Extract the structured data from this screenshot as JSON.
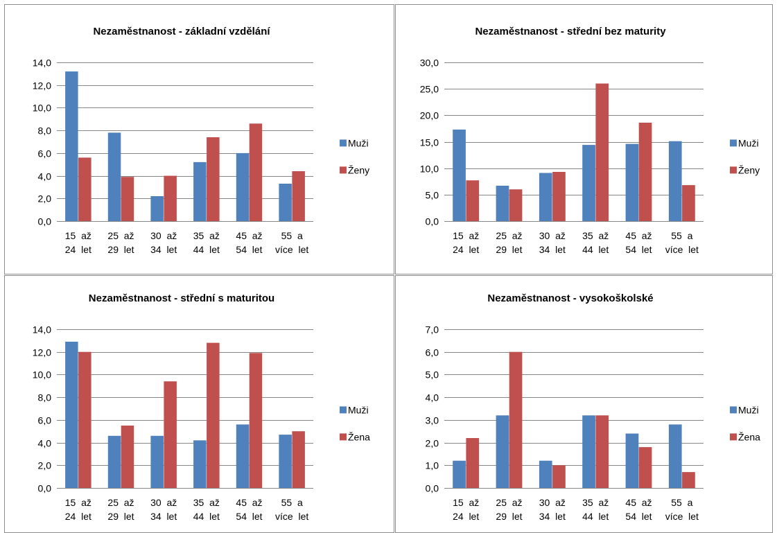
{
  "chart_data": [
    {
      "type": "bar",
      "title": "Nezaměstnanost - základní vzdělání",
      "categories": [
        [
          "15  až",
          "24  let"
        ],
        [
          "25  až",
          "29  let"
        ],
        [
          "30  až",
          "34  let"
        ],
        [
          "35  až",
          "44  let"
        ],
        [
          "45  až",
          "54  let"
        ],
        [
          "55  a",
          "více  let"
        ]
      ],
      "series": [
        {
          "name": "Muži",
          "color": "#4F81BD",
          "values": [
            13.2,
            7.8,
            2.2,
            5.2,
            6.0,
            3.3
          ]
        },
        {
          "name": "Ženy",
          "color": "#C0504D",
          "values": [
            5.6,
            3.9,
            4.0,
            7.4,
            8.6,
            4.4
          ]
        }
      ],
      "ylim": [
        0,
        14
      ],
      "yticks": [
        "0,0",
        "2,0",
        "4,0",
        "6,0",
        "8,0",
        "10,0",
        "12,0",
        "14,0"
      ],
      "grid": true,
      "legend": "right"
    },
    {
      "type": "bar",
      "title": "Nezaměstnanost - střední bez maturity",
      "categories": [
        [
          "15  až",
          "24  let"
        ],
        [
          "25  až",
          "29  let"
        ],
        [
          "30  až",
          "34  let"
        ],
        [
          "35  až",
          "44  let"
        ],
        [
          "45  až",
          "54  let"
        ],
        [
          "55  a",
          "více  let"
        ]
      ],
      "series": [
        {
          "name": "Muži",
          "color": "#4F81BD",
          "values": [
            17.3,
            6.7,
            9.1,
            14.4,
            14.6,
            15.1
          ]
        },
        {
          "name": "Ženy",
          "color": "#C0504D",
          "values": [
            7.7,
            6.0,
            9.3,
            26.0,
            18.6,
            6.8
          ]
        }
      ],
      "ylim": [
        0,
        30
      ],
      "yticks": [
        "0,0",
        "5,0",
        "10,0",
        "15,0",
        "20,0",
        "25,0",
        "30,0"
      ],
      "grid": true,
      "legend": "right"
    },
    {
      "type": "bar",
      "title": "Nezaměstnanost - střední s maturitou",
      "categories": [
        [
          "15  až",
          "24  let"
        ],
        [
          "25  až",
          "29  let"
        ],
        [
          "30  až",
          "34  let"
        ],
        [
          "35  až",
          "44  let"
        ],
        [
          "45  až",
          "54  let"
        ],
        [
          "55  a",
          "více  let"
        ]
      ],
      "series": [
        {
          "name": "Muži",
          "color": "#4F81BD",
          "values": [
            12.9,
            4.6,
            4.6,
            4.2,
            5.6,
            4.7
          ]
        },
        {
          "name": "Žena",
          "color": "#C0504D",
          "values": [
            12.0,
            5.5,
            9.4,
            12.8,
            11.9,
            5.0
          ]
        }
      ],
      "ylim": [
        0,
        14
      ],
      "yticks": [
        "0,0",
        "2,0",
        "4,0",
        "6,0",
        "8,0",
        "10,0",
        "12,0",
        "14,0"
      ],
      "grid": true,
      "legend": "right"
    },
    {
      "type": "bar",
      "title": "Nezaměstnanost - vysokoškolské",
      "categories": [
        [
          "15  až",
          "24  let"
        ],
        [
          "25  až",
          "29  let"
        ],
        [
          "30  až",
          "34  let"
        ],
        [
          "35  až",
          "44  let"
        ],
        [
          "45  až",
          "54  let"
        ],
        [
          "55  a",
          "více  let"
        ]
      ],
      "series": [
        {
          "name": "Muži",
          "color": "#4F81BD",
          "values": [
            1.2,
            3.2,
            1.2,
            3.2,
            2.4,
            2.8
          ]
        },
        {
          "name": "Žena",
          "color": "#C0504D",
          "values": [
            2.2,
            6.0,
            1.0,
            3.2,
            1.8,
            0.7
          ]
        }
      ],
      "ylim": [
        0,
        7
      ],
      "yticks": [
        "0,0",
        "1,0",
        "2,0",
        "3,0",
        "4,0",
        "5,0",
        "6,0",
        "7,0"
      ],
      "grid": true,
      "legend": "right"
    }
  ]
}
